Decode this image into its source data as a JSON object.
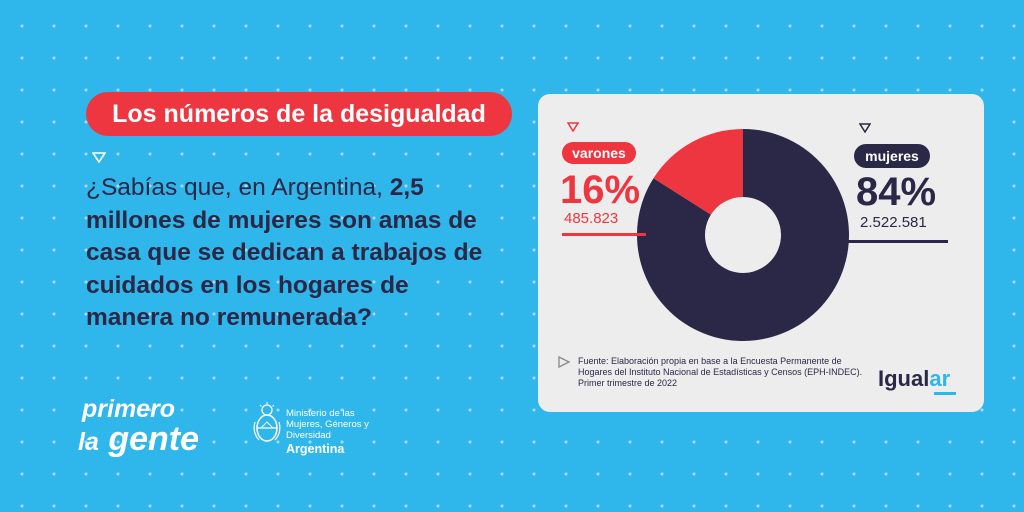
{
  "title": "Los números de la desigualdad",
  "question": {
    "parts": [
      {
        "text": "¿Sabías que, en Argentina, ",
        "bold": false
      },
      {
        "text": "2,5 millones de mujeres son amas de casa que se dedican a trabajos de cuidados en los hogares de manera no remunerada?",
        "bold": true
      }
    ]
  },
  "chart_data": {
    "type": "pie",
    "categories": [
      "varones",
      "mujeres"
    ],
    "values": [
      16,
      84
    ],
    "counts": [
      "485.823",
      "2.522.581"
    ],
    "labels": [
      "16%",
      "84%"
    ],
    "colors": [
      "#ee3640",
      "#2b2747"
    ],
    "title": ""
  },
  "source": "Fuente: Elaboración propia en base a la Encuesta Permanente de Hogares del Instituto Nacional de Estadísticas y Censos (EPH-INDEC). Primer trimestre de 2022",
  "brand": {
    "prefix": "Igual",
    "accent": "ar"
  },
  "footer": {
    "logo_line1": "primero",
    "logo_line2_small": "la",
    "logo_line2_big": "gente",
    "ministry": "Ministerio de las Mujeres, Géneros y Diversidad",
    "country": "Argentina"
  },
  "colors": {
    "background": "#2fb6ea",
    "accent_red": "#ee3640",
    "navy": "#2b2747",
    "card": "#ededed"
  }
}
